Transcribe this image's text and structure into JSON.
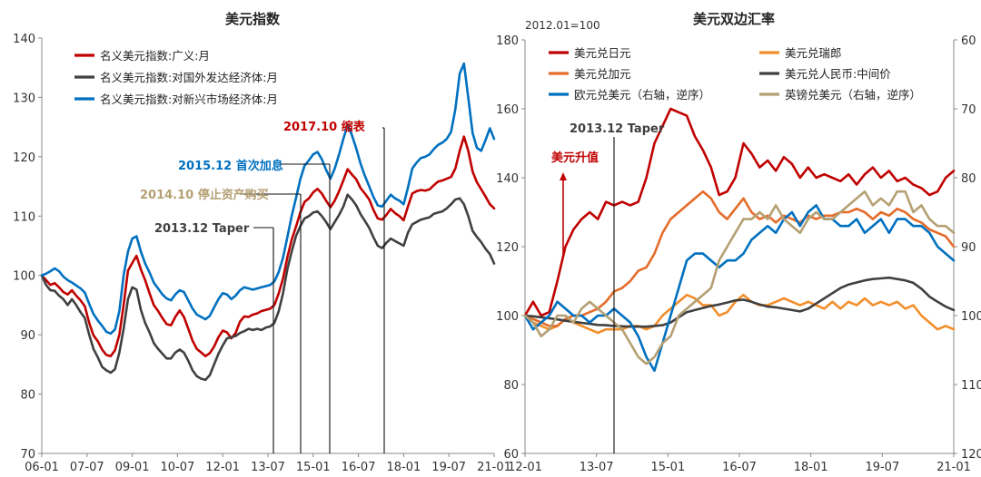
{
  "charts": [
    {
      "type": "line",
      "title": "美元指数",
      "x_ticks": [
        "06-01",
        "07-07",
        "09-01",
        "10-07",
        "12-01",
        "13-07",
        "15-01",
        "16-07",
        "18-01",
        "19-07",
        "21-01"
      ],
      "ylim": [
        70,
        140
      ],
      "y_ticks": [
        70,
        80,
        90,
        100,
        110,
        120,
        130,
        140
      ],
      "legend": {
        "placement": "top-left"
      },
      "series": [
        {
          "name": "名义美元指数:广义:月",
          "color": "#c00000",
          "values": [
            100,
            99.2,
            98.4,
            98.7,
            98.0,
            97.2,
            96.8,
            97.5,
            96.6,
            95.8,
            94.8,
            92.0,
            89.9,
            88.9,
            87.5,
            86.6,
            86.4,
            87.4,
            90.0,
            95.0,
            100.8,
            102.1,
            103.3,
            101.0,
            99.2,
            97.0,
            95.0,
            94.0,
            92.8,
            91.8,
            91.6,
            93.0,
            94.1,
            93.0,
            91.0,
            89.0,
            87.6,
            87.0,
            86.4,
            86.9,
            88.0,
            89.6,
            90.7,
            90.4,
            89.4,
            90.3,
            92.2,
            93.1,
            93.0,
            93.4,
            93.6,
            94.0,
            94.2,
            94.4,
            95.0,
            97.0,
            99.5,
            103.0,
            106.0,
            108.2,
            110.6,
            112.4,
            113.0,
            114.0,
            114.6,
            113.8,
            112.6,
            111.5,
            112.6,
            114.2,
            116.0,
            117.9,
            117.0,
            116.2,
            114.7,
            113.8,
            112.8,
            111.0,
            109.6,
            109.4,
            110.2,
            111.2,
            110.5,
            110.0,
            109.3,
            111.6,
            113.8,
            114.2,
            114.4,
            114.3,
            114.5,
            115.2,
            115.8,
            116.0,
            116.3,
            116.6,
            118.0,
            121.0,
            123.4,
            121.0,
            117.5,
            115.7,
            114.5,
            113.3,
            112.0,
            111.3
          ]
        },
        {
          "name": "名义美元指数:对国外发达经济体:月",
          "color": "#404040",
          "values": [
            100,
            98.4,
            97.5,
            97.4,
            96.6,
            96.0,
            95.0,
            96.0,
            95.0,
            93.8,
            92.8,
            90.0,
            87.6,
            86.2,
            84.6,
            84.0,
            83.6,
            84.2,
            87.0,
            91.0,
            96.0,
            98.0,
            97.6,
            94.2,
            92.0,
            90.4,
            88.6,
            87.6,
            86.8,
            86.0,
            86.0,
            87.0,
            87.5,
            87.0,
            85.6,
            84.0,
            83.0,
            82.6,
            82.4,
            83.2,
            85.0,
            86.8,
            88.2,
            89.4,
            89.6,
            89.8,
            90.3,
            90.6,
            91.0,
            90.8,
            91.0,
            90.8,
            91.2,
            91.4,
            92.0,
            94.0,
            97.0,
            101.0,
            104.0,
            106.6,
            108.3,
            109.6,
            110.0,
            110.6,
            110.8,
            110.0,
            109.0,
            107.8,
            109.0,
            110.2,
            111.6,
            113.6,
            112.8,
            111.8,
            110.3,
            109.2,
            108.0,
            106.4,
            105.0,
            104.6,
            105.5,
            106.2,
            105.8,
            105.4,
            105.0,
            107.2,
            108.6,
            109.0,
            109.4,
            109.6,
            109.8,
            110.4,
            110.6,
            110.8,
            111.3,
            112.0,
            112.8,
            113.0,
            112.0,
            110.0,
            107.5,
            106.5,
            105.6,
            104.5,
            103.6,
            102.0
          ]
        },
        {
          "name": "名义美元指数:对新兴市场经济体:月",
          "color": "#0070c0",
          "values": [
            100,
            100.3,
            100.7,
            101.2,
            100.7,
            99.8,
            99.2,
            98.8,
            98.3,
            97.8,
            97.1,
            95.2,
            93.5,
            92.4,
            91.5,
            90.5,
            90.2,
            90.9,
            94.0,
            100.0,
            104.0,
            106.2,
            106.6,
            104.0,
            102.0,
            100.5,
            98.8,
            97.8,
            96.8,
            96.1,
            95.8,
            96.8,
            97.5,
            97.2,
            95.8,
            94.4,
            93.4,
            93.0,
            92.6,
            93.2,
            94.6,
            96.0,
            97.0,
            96.8,
            96.0,
            96.6,
            97.5,
            98.0,
            97.8,
            97.6,
            97.8,
            98.0,
            98.2,
            98.4,
            99.0,
            100.6,
            103.0,
            106.4,
            110.0,
            113.0,
            116.2,
            118.5,
            119.4,
            120.4,
            120.8,
            119.6,
            117.8,
            116.3,
            118.0,
            120.4,
            123.0,
            125.4,
            123.6,
            121.4,
            118.8,
            116.8,
            115.0,
            113.2,
            111.8,
            111.6,
            112.6,
            113.6,
            113.0,
            112.6,
            112.0,
            114.8,
            118.0,
            119.0,
            119.8,
            120.0,
            120.4,
            121.3,
            122.0,
            122.4,
            123.0,
            124.2,
            128.0,
            134.0,
            135.7,
            130.0,
            124.0,
            121.5,
            121.0,
            122.8,
            124.8,
            123.0
          ]
        }
      ],
      "annotations": [
        {
          "label": "2017.10 缩表",
          "color": "#c00000",
          "x_index": 87,
          "y_value": 125.0
        },
        {
          "label": "2015.12 首次加息",
          "color": "#0070c0",
          "x_index": 66,
          "y_value": 119.0
        },
        {
          "label": "2014.10 停止资产购买",
          "color": "#b4a073",
          "x_index": 59,
          "y_value": 113.5
        },
        {
          "label": "2013.12 Taper",
          "color": "#404040",
          "x_index": 48,
          "y_value": 106.3
        }
      ]
    },
    {
      "type": "line",
      "title": "美元双边汇率",
      "corner_note": "2012.01=100",
      "x_ticks": [
        "12-01",
        "13-07",
        "15-01",
        "16-07",
        "18-01",
        "19-07",
        "21-01"
      ],
      "ylim": [
        60,
        180
      ],
      "y_ticks": [
        60,
        80,
        100,
        120,
        140,
        160,
        180
      ],
      "y2lim": [
        120,
        60
      ],
      "y2_ticks": [
        120,
        110,
        100,
        90,
        80,
        70,
        60
      ],
      "legend": {
        "placement": "top"
      },
      "series": [
        {
          "name": "美元兑日元",
          "color": "#c00000",
          "axis": "left",
          "values": [
            100,
            104,
            100,
            101,
            110,
            120,
            125,
            128,
            130,
            128,
            133,
            132,
            133,
            132,
            133,
            140,
            150,
            155,
            160,
            159,
            158,
            152,
            148,
            143,
            135,
            136,
            140,
            150,
            147,
            143,
            145,
            142,
            146,
            144,
            140,
            143,
            140,
            141,
            140,
            139,
            141,
            138,
            141,
            143,
            140,
            142,
            139,
            140,
            138,
            137,
            135,
            136,
            140,
            142
          ]
        },
        {
          "name": "美元兑瑞郎",
          "color": "#f28e2b",
          "axis": "left",
          "values": [
            100,
            98,
            97,
            96,
            97,
            99,
            98,
            97,
            96,
            95,
            96,
            96,
            96,
            97,
            97,
            96,
            97,
            100,
            102,
            104,
            106,
            105,
            103,
            103,
            100,
            101,
            104,
            106,
            104,
            103,
            103,
            104,
            105,
            104,
            103,
            104,
            103,
            102,
            104,
            102,
            104,
            103,
            105,
            103,
            104,
            103,
            104,
            102,
            103,
            100,
            98,
            96,
            97,
            96
          ]
        },
        {
          "name": "美元兑加元",
          "color": "#e46c2a",
          "axis": "left",
          "values": [
            100,
            99,
            98,
            97,
            97,
            99,
            100,
            100,
            101,
            102,
            104,
            107,
            108,
            110,
            113,
            114,
            118,
            124,
            128,
            130,
            132,
            134,
            136,
            134,
            130,
            128,
            131,
            134,
            130,
            128,
            129,
            127,
            129,
            128,
            127,
            129,
            128,
            129,
            129,
            130,
            130,
            131,
            130,
            128,
            130,
            129,
            131,
            130,
            128,
            127,
            125,
            124,
            123,
            120
          ]
        },
        {
          "name": "美元兑人民币:中间价",
          "color": "#404040",
          "axis": "left",
          "values": [
            100,
            99.8,
            99.5,
            99.2,
            98.9,
            98.5,
            98.2,
            97.9,
            97.6,
            97.3,
            97.2,
            97.0,
            96.9,
            96.8,
            96.8,
            96.8,
            97.0,
            97.2,
            98.0,
            99.5,
            101.0,
            101.6,
            102.2,
            102.8,
            103.2,
            103.8,
            104.4,
            104.6,
            104.0,
            103.2,
            102.6,
            102.4,
            102.0,
            101.6,
            101.2,
            102.0,
            103.5,
            105.0,
            106.5,
            108.0,
            109.0,
            109.6,
            110.2,
            110.6,
            110.8,
            111.0,
            110.6,
            110.2,
            109.5,
            107.8,
            105.5,
            104.0,
            102.6,
            101.6
          ]
        },
        {
          "name": "欧元兑美元（右轴，逆序）",
          "color": "#0070c0",
          "axis": "right",
          "values": [
            100,
            102,
            101,
            100,
            98,
            99,
            100,
            100,
            101,
            100,
            100,
            99,
            100,
            101,
            103,
            106,
            108,
            104,
            100,
            96,
            92,
            91,
            91,
            92,
            93,
            92,
            92,
            91,
            89,
            88,
            87,
            88,
            86,
            85,
            87,
            85,
            84,
            86,
            86,
            87,
            87,
            86,
            88,
            87,
            86,
            88,
            86,
            86,
            87,
            87,
            88,
            90,
            91,
            92
          ]
        },
        {
          "name": "英镑兑美元（右轴，逆序）",
          "color": "#b4a073",
          "axis": "right",
          "values": [
            100,
            101,
            103,
            102,
            100,
            100,
            101,
            99,
            98,
            99,
            100,
            101,
            102,
            104,
            106,
            107,
            106,
            104,
            103,
            100,
            99,
            98,
            97,
            96,
            92,
            90,
            88,
            86,
            86,
            85,
            86,
            84,
            86,
            87,
            88,
            86,
            85,
            86,
            86,
            85,
            84,
            83,
            82,
            84,
            83,
            84,
            82,
            82,
            85,
            84,
            86,
            87,
            87,
            88
          ]
        }
      ],
      "annotations": [
        {
          "label": "2013.12 Taper",
          "color": "#404040",
          "x_index": 12,
          "y_value": 149.6
        },
        {
          "label": "美元升值",
          "color": "#c00000",
          "x_index": 4,
          "y_value": 136.5
        }
      ]
    }
  ]
}
